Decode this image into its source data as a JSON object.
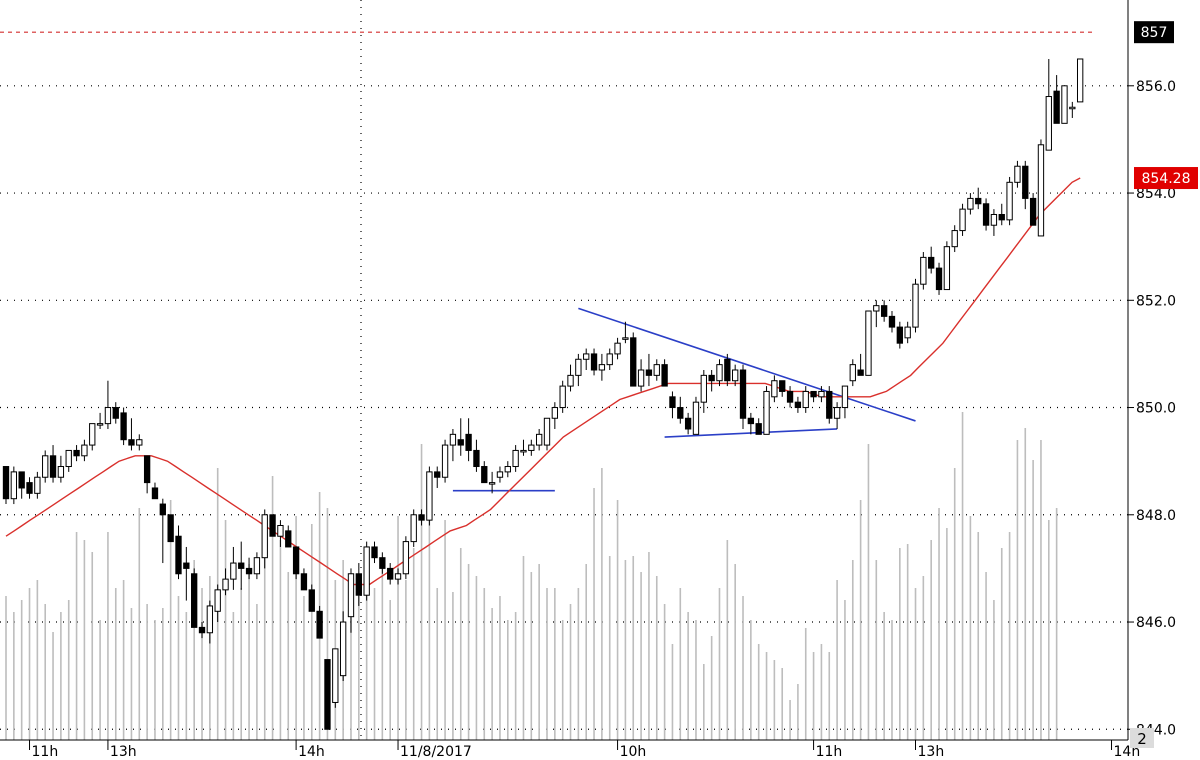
{
  "chart_data": {
    "type": "candlestick",
    "y_range": [
      843.8,
      857.6
    ],
    "y_ticks": [
      844.0,
      846.0,
      848.0,
      850.0,
      852.0,
      854.0,
      856.0
    ],
    "y_tick_labels": [
      "844.0",
      "846.0",
      "848.0",
      "850.0",
      "852.0",
      "854.0",
      "856.0"
    ],
    "x_tick_labels": [
      "11h",
      "13h",
      "14h",
      "11/8/2017",
      "10h",
      "11h",
      "13h",
      "14h"
    ],
    "x_tick_positions": [
      3,
      13,
      37,
      50,
      78,
      103,
      116,
      141
    ],
    "marker_level": {
      "value": 857.0,
      "label": "857",
      "color": "#000000",
      "dashed_color": "#d32f2f"
    },
    "last_ma": {
      "value": 854.28,
      "label": "854.28",
      "color": "#e00000"
    },
    "corner_label": "2",
    "colors": {
      "ma": "#d9302c",
      "trendline": "#2b3fc7",
      "grid": "#000000",
      "volume": "#bdbdbd",
      "candle": "#000000"
    },
    "candles_ohlc": [
      [
        848.9,
        848.9,
        848.2,
        848.3
      ],
      [
        848.3,
        848.9,
        848.2,
        848.8
      ],
      [
        848.8,
        848.8,
        848.3,
        848.5
      ],
      [
        848.6,
        848.7,
        848.3,
        848.4
      ],
      [
        848.4,
        848.8,
        848.3,
        848.7
      ],
      [
        848.7,
        849.2,
        848.6,
        849.1
      ],
      [
        849.1,
        849.3,
        848.6,
        848.7
      ],
      [
        848.7,
        849.1,
        848.6,
        848.9
      ],
      [
        848.9,
        849.2,
        848.8,
        849.2
      ],
      [
        849.2,
        849.3,
        849.0,
        849.1
      ],
      [
        849.1,
        849.4,
        849.0,
        849.3
      ],
      [
        849.3,
        849.7,
        849.2,
        849.7
      ],
      [
        849.7,
        849.9,
        849.6,
        849.7
      ],
      [
        849.7,
        850.5,
        849.6,
        850.0
      ],
      [
        850.0,
        850.1,
        849.7,
        849.8
      ],
      [
        849.9,
        850.0,
        849.3,
        849.4
      ],
      [
        849.4,
        849.8,
        849.2,
        849.3
      ],
      [
        849.3,
        849.5,
        849.2,
        849.4
      ],
      [
        849.1,
        849.1,
        848.4,
        848.6
      ],
      [
        848.5,
        848.6,
        848.3,
        848.3
      ],
      [
        848.2,
        848.3,
        847.1,
        848.0
      ],
      [
        848.0,
        848.0,
        847.5,
        847.5
      ],
      [
        847.6,
        847.8,
        846.8,
        846.9
      ],
      [
        847.1,
        847.4,
        846.4,
        847.0
      ],
      [
        846.9,
        847.0,
        845.9,
        845.9
      ],
      [
        845.9,
        846.0,
        845.7,
        845.8
      ],
      [
        845.8,
        846.4,
        845.6,
        846.3
      ],
      [
        846.2,
        846.7,
        846.0,
        846.6
      ],
      [
        846.6,
        847.0,
        846.5,
        846.8
      ],
      [
        846.8,
        847.4,
        846.6,
        847.1
      ],
      [
        847.1,
        847.5,
        846.6,
        847.0
      ],
      [
        847.0,
        847.2,
        846.8,
        846.9
      ],
      [
        846.9,
        847.3,
        846.8,
        847.2
      ],
      [
        847.2,
        848.1,
        847.0,
        848.0
      ],
      [
        848.0,
        848.0,
        847.6,
        847.6
      ],
      [
        847.6,
        847.9,
        847.4,
        847.8
      ],
      [
        847.7,
        847.8,
        847.4,
        847.4
      ],
      [
        847.4,
        847.4,
        846.8,
        846.9
      ],
      [
        846.9,
        847.0,
        846.6,
        846.6
      ],
      [
        846.6,
        846.7,
        846.2,
        846.2
      ],
      [
        846.2,
        846.3,
        845.7,
        845.7
      ],
      [
        845.3,
        845.3,
        844.0,
        844.0
      ],
      [
        844.5,
        845.5,
        844.4,
        845.5
      ],
      [
        845.0,
        846.2,
        844.9,
        846.0
      ],
      [
        846.1,
        847.0,
        845.8,
        846.9
      ],
      [
        846.9,
        847.1,
        846.3,
        846.5
      ],
      [
        846.5,
        847.5,
        846.4,
        847.4
      ],
      [
        847.4,
        847.5,
        847.1,
        847.2
      ],
      [
        847.2,
        847.3,
        846.9,
        847.0
      ],
      [
        847.0,
        847.1,
        846.7,
        846.8
      ],
      [
        846.8,
        847.0,
        846.7,
        846.9
      ],
      [
        846.9,
        847.6,
        846.8,
        847.5
      ],
      [
        847.5,
        848.1,
        847.4,
        848.0
      ],
      [
        848.0,
        848.1,
        847.8,
        847.9
      ],
      [
        847.9,
        848.9,
        847.8,
        848.8
      ],
      [
        848.8,
        848.9,
        848.5,
        848.7
      ],
      [
        848.7,
        849.4,
        848.6,
        849.3
      ],
      [
        849.3,
        849.6,
        849.0,
        849.5
      ],
      [
        849.4,
        849.8,
        849.1,
        849.3
      ],
      [
        849.5,
        849.8,
        849.0,
        849.2
      ],
      [
        849.2,
        849.4,
        848.8,
        848.9
      ],
      [
        848.9,
        849.0,
        848.6,
        848.6
      ],
      [
        848.6,
        848.8,
        848.4,
        848.6
      ],
      [
        848.7,
        848.9,
        848.6,
        848.8
      ],
      [
        848.8,
        849.0,
        848.7,
        848.9
      ],
      [
        848.9,
        849.3,
        848.8,
        849.2
      ],
      [
        849.2,
        849.4,
        849.1,
        849.2
      ],
      [
        849.2,
        849.4,
        849.1,
        849.3
      ],
      [
        849.3,
        849.6,
        849.2,
        849.5
      ],
      [
        849.3,
        849.8,
        849.2,
        849.8
      ],
      [
        849.8,
        850.1,
        849.6,
        850.0
      ],
      [
        850.0,
        850.5,
        849.9,
        850.4
      ],
      [
        850.4,
        850.8,
        850.3,
        850.6
      ],
      [
        850.6,
        851.0,
        850.4,
        850.9
      ],
      [
        850.9,
        851.1,
        850.7,
        851.0
      ],
      [
        851.0,
        851.1,
        850.6,
        850.7
      ],
      [
        850.7,
        851.0,
        850.5,
        850.8
      ],
      [
        850.8,
        851.1,
        850.7,
        851.0
      ],
      [
        851.0,
        851.3,
        850.9,
        851.2
      ],
      [
        851.3,
        851.6,
        851.2,
        851.3
      ],
      [
        851.3,
        851.4,
        850.4,
        850.4
      ],
      [
        850.4,
        850.9,
        850.3,
        850.7
      ],
      [
        850.7,
        851.0,
        850.4,
        850.6
      ],
      [
        850.6,
        850.9,
        850.5,
        850.8
      ],
      [
        850.8,
        850.9,
        850.4,
        850.4
      ],
      [
        850.2,
        850.3,
        849.8,
        850.0
      ],
      [
        850.0,
        850.2,
        849.7,
        849.8
      ],
      [
        849.8,
        849.9,
        849.5,
        849.6
      ],
      [
        849.5,
        850.2,
        849.5,
        850.1
      ],
      [
        850.1,
        850.7,
        849.9,
        850.6
      ],
      [
        850.6,
        850.7,
        850.3,
        850.5
      ],
      [
        850.5,
        850.9,
        850.4,
        850.8
      ],
      [
        850.9,
        851.0,
        850.4,
        850.5
      ],
      [
        850.5,
        850.8,
        850.4,
        850.7
      ],
      [
        850.7,
        850.8,
        849.6,
        849.8
      ],
      [
        849.8,
        849.9,
        849.5,
        849.7
      ],
      [
        849.7,
        849.8,
        849.5,
        849.5
      ],
      [
        849.5,
        850.4,
        849.5,
        850.3
      ],
      [
        850.2,
        850.6,
        850.1,
        850.5
      ],
      [
        850.5,
        850.5,
        850.2,
        850.3
      ],
      [
        850.3,
        850.4,
        850.0,
        850.1
      ],
      [
        850.1,
        850.2,
        849.9,
        850.0
      ],
      [
        850.0,
        850.4,
        849.9,
        850.3
      ],
      [
        850.3,
        850.3,
        850.1,
        850.2
      ],
      [
        850.2,
        850.4,
        850.1,
        850.3
      ],
      [
        850.3,
        850.4,
        849.7,
        849.8
      ],
      [
        849.8,
        850.1,
        849.6,
        850.0
      ],
      [
        850.0,
        850.4,
        849.8,
        850.4
      ],
      [
        850.5,
        850.9,
        850.4,
        850.8
      ],
      [
        850.7,
        851.0,
        850.6,
        850.6
      ],
      [
        850.6,
        851.8,
        850.6,
        851.8
      ],
      [
        851.8,
        852.0,
        851.5,
        851.9
      ],
      [
        851.9,
        852.0,
        851.6,
        851.7
      ],
      [
        851.7,
        851.8,
        851.4,
        851.5
      ],
      [
        851.5,
        851.6,
        851.1,
        851.2
      ],
      [
        851.3,
        851.6,
        851.2,
        851.5
      ],
      [
        851.5,
        852.4,
        851.4,
        852.3
      ],
      [
        852.3,
        852.9,
        852.2,
        852.8
      ],
      [
        852.8,
        853.0,
        852.5,
        852.6
      ],
      [
        852.6,
        852.7,
        852.1,
        852.2
      ],
      [
        852.2,
        853.1,
        852.2,
        853.0
      ],
      [
        853.0,
        853.4,
        852.9,
        853.3
      ],
      [
        853.3,
        853.8,
        853.2,
        853.7
      ],
      [
        853.7,
        854.0,
        853.6,
        853.9
      ],
      [
        853.9,
        854.1,
        853.7,
        853.8
      ],
      [
        853.8,
        853.9,
        853.3,
        853.4
      ],
      [
        853.4,
        853.7,
        853.2,
        853.6
      ],
      [
        853.6,
        853.8,
        853.4,
        853.5
      ],
      [
        853.5,
        854.3,
        853.4,
        854.2
      ],
      [
        854.2,
        854.6,
        854.1,
        854.5
      ],
      [
        854.5,
        854.6,
        853.7,
        853.9
      ],
      [
        853.9,
        854.0,
        853.4,
        853.4
      ],
      [
        853.2,
        855.0,
        853.2,
        854.9
      ],
      [
        854.8,
        856.5,
        854.8,
        855.8
      ],
      [
        855.9,
        856.2,
        855.3,
        855.3
      ],
      [
        855.3,
        856.0,
        855.3,
        856.0
      ],
      [
        855.6,
        855.7,
        855.4,
        855.6
      ],
      [
        855.7,
        856.5,
        855.7,
        856.5
      ]
    ],
    "ma_values": [
      847.6,
      847.7,
      847.8,
      847.9,
      848.0,
      848.1,
      848.2,
      848.3,
      848.4,
      848.5,
      848.6,
      848.7,
      848.8,
      848.9,
      849.0,
      849.05,
      849.1,
      849.1,
      849.1,
      849.05,
      849.0,
      848.9,
      848.8,
      848.7,
      848.6,
      848.5,
      848.4,
      848.3,
      848.2,
      848.1,
      848.0,
      847.9,
      847.8,
      847.7,
      847.6,
      847.5,
      847.4,
      847.3,
      847.2,
      847.1,
      847.0,
      846.9,
      846.8,
      846.7,
      846.7,
      846.7,
      846.8,
      846.9,
      847.0,
      847.1,
      847.2,
      847.3,
      847.4,
      847.5,
      847.6,
      847.7,
      847.75,
      847.8,
      847.9,
      848.0,
      848.1,
      848.25,
      848.4,
      848.55,
      848.7,
      848.85,
      849.0,
      849.15,
      849.3,
      849.45,
      849.55,
      849.65,
      849.75,
      849.85,
      849.95,
      850.05,
      850.15,
      850.2,
      850.25,
      850.3,
      850.35,
      850.4,
      850.45,
      850.45,
      850.45,
      850.45,
      850.45,
      850.45,
      850.45,
      850.45,
      850.45,
      850.45,
      850.45,
      850.45,
      850.45,
      850.4,
      850.35,
      850.3,
      850.3,
      850.3,
      850.25,
      850.2,
      850.2,
      850.2,
      850.2,
      850.2,
      850.2,
      850.2,
      850.25,
      850.3,
      850.4,
      850.5,
      850.6,
      850.75,
      850.9,
      851.05,
      851.2,
      851.4,
      851.6,
      851.8,
      852.0,
      852.2,
      852.4,
      852.6,
      852.8,
      853.0,
      853.2,
      853.4,
      853.6,
      853.75,
      853.9,
      854.05,
      854.2,
      854.28
    ],
    "volume_fraction": [
      0.36,
      0.32,
      0.35,
      0.38,
      0.4,
      0.34,
      0.27,
      0.32,
      0.35,
      0.52,
      0.5,
      0.47,
      0.3,
      0.52,
      0.38,
      0.4,
      0.33,
      0.58,
      0.34,
      0.3,
      0.33,
      0.6,
      0.36,
      0.32,
      0.45,
      0.38,
      0.41,
      0.68,
      0.55,
      0.32,
      0.38,
      0.44,
      0.34,
      0.48,
      0.66,
      0.5,
      0.42,
      0.56,
      0.36,
      0.54,
      0.62,
      0.58,
      0.4,
      0.45,
      0.38,
      0.36,
      0.4,
      0.38,
      0.43,
      0.35,
      0.56,
      0.4,
      0.48,
      0.74,
      0.62,
      0.38,
      0.55,
      0.37,
      0.48,
      0.44,
      0.41,
      0.38,
      0.33,
      0.36,
      0.3,
      0.32,
      0.46,
      0.42,
      0.44,
      0.38,
      0.38,
      0.3,
      0.34,
      0.38,
      0.44,
      0.63,
      0.68,
      0.46,
      0.6,
      0.45,
      0.46,
      0.42,
      0.47,
      0.41,
      0.34,
      0.24,
      0.38,
      0.32,
      0.3,
      0.19,
      0.26,
      0.38,
      0.5,
      0.44,
      0.36,
      0.3,
      0.24,
      0.22,
      0.2,
      0.18,
      0.1,
      0.14,
      0.28,
      0.22,
      0.24,
      0.22,
      0.4,
      0.35,
      0.45,
      0.6,
      0.74,
      0.45,
      0.32,
      0.3,
      0.48,
      0.49,
      0.38,
      0.41,
      0.5,
      0.58,
      0.53,
      0.68,
      0.82,
      0.56,
      0.52,
      0.42,
      0.35,
      0.48,
      0.52,
      0.75,
      0.78,
      0.7,
      0.75,
      0.55,
      0.58
    ],
    "trendlines": [
      {
        "name": "support-short",
        "from": [
          57,
          848.45
        ],
        "to": [
          70,
          848.45
        ]
      },
      {
        "name": "descending-resistance",
        "from": [
          73,
          851.85
        ],
        "to": [
          116,
          849.75
        ]
      },
      {
        "name": "triangle-support",
        "from": [
          84,
          849.45
        ],
        "to": [
          106,
          849.6
        ]
      }
    ]
  }
}
